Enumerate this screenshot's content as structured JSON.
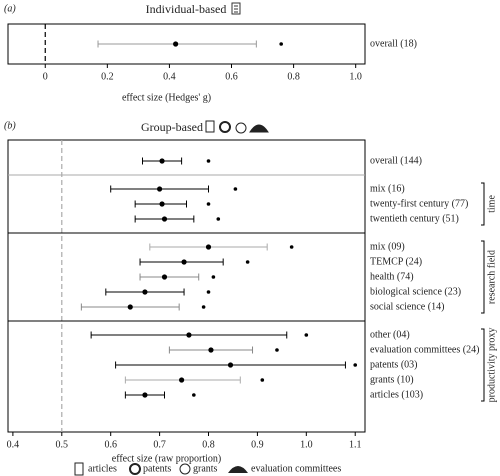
{
  "chart_data": [
    {
      "type": "forest",
      "panel": "(a)",
      "title": "Individual-based",
      "xlabel": "effect size (Hedges' g)",
      "xlim": [
        -0.12,
        1.03
      ],
      "xticks": [
        0,
        0.2,
        0.4,
        0.6,
        0.8,
        {
          "value": 1,
          "label": "1.0"
        }
      ],
      "refline": 0,
      "refline_color": "#000",
      "sections": [
        {
          "categories": [
            "overall (18)"
          ],
          "values": [
            0.42
          ],
          "lower": [
            0.17
          ],
          "upper": [
            0.68
          ],
          "stars": [
            0.76
          ],
          "ci_colors": [
            "#999"
          ]
        }
      ]
    },
    {
      "type": "forest",
      "panel": "(b)",
      "title": "Group-based",
      "xlabel": "effect size (raw proportion)",
      "xlim": [
        0.39,
        1.12
      ],
      "xticks": [
        0.4,
        0.5,
        0.6,
        0.7,
        0.8,
        0.9,
        {
          "value": 1,
          "label": "1.0"
        },
        1.1
      ],
      "refline": 0.5,
      "refline_color": "#aaa",
      "sections": [
        {
          "categories": [
            "overall (144)"
          ],
          "values": [
            0.705
          ],
          "lower": [
            0.665
          ],
          "upper": [
            0.745
          ],
          "stars": [
            0.8
          ],
          "ci_colors": [
            "#000"
          ]
        },
        {
          "label": "time",
          "categories": [
            "mix (16)",
            "twenty-first century (77)",
            "twentieth century (51)"
          ],
          "values": [
            0.7,
            0.705,
            0.71
          ],
          "lower": [
            0.6,
            0.65,
            0.65
          ],
          "upper": [
            0.8,
            0.755,
            0.77
          ],
          "stars": [
            0.855,
            0.8,
            0.82
          ],
          "ci_colors": [
            "#000",
            "#000",
            "#000"
          ]
        },
        {
          "label": "research field",
          "categories": [
            "mix (09)",
            "TEMCP (24)",
            "health (74)",
            "biological science (23)",
            "social science (14)"
          ],
          "values": [
            0.8,
            0.75,
            0.71,
            0.67,
            0.64
          ],
          "lower": [
            0.68,
            0.66,
            0.66,
            0.59,
            0.54
          ],
          "upper": [
            0.92,
            0.83,
            0.78,
            0.75,
            0.74
          ],
          "stars": [
            0.97,
            0.88,
            0.81,
            0.8,
            0.79
          ],
          "ci_colors": [
            "#aaa",
            "#000",
            "#888",
            "#000",
            "#888"
          ]
        },
        {
          "label": "productivity proxy",
          "categories": [
            "other (04)",
            "evaluation committees (24)",
            "patents (03)",
            "grants (10)",
            "articles (103)"
          ],
          "values": [
            0.76,
            0.805,
            0.845,
            0.745,
            0.67
          ],
          "lower": [
            0.56,
            0.72,
            0.61,
            0.63,
            0.63
          ],
          "upper": [
            0.96,
            0.89,
            1.08,
            0.865,
            0.71
          ],
          "stars": [
            1.0,
            0.94,
            1.1,
            0.91,
            0.77
          ],
          "ci_colors": [
            "#000",
            "#888",
            "#000",
            "#aaa",
            "#000"
          ]
        }
      ],
      "legend": [
        "articles",
        "patents",
        "grants",
        "evaluation committees"
      ]
    }
  ]
}
